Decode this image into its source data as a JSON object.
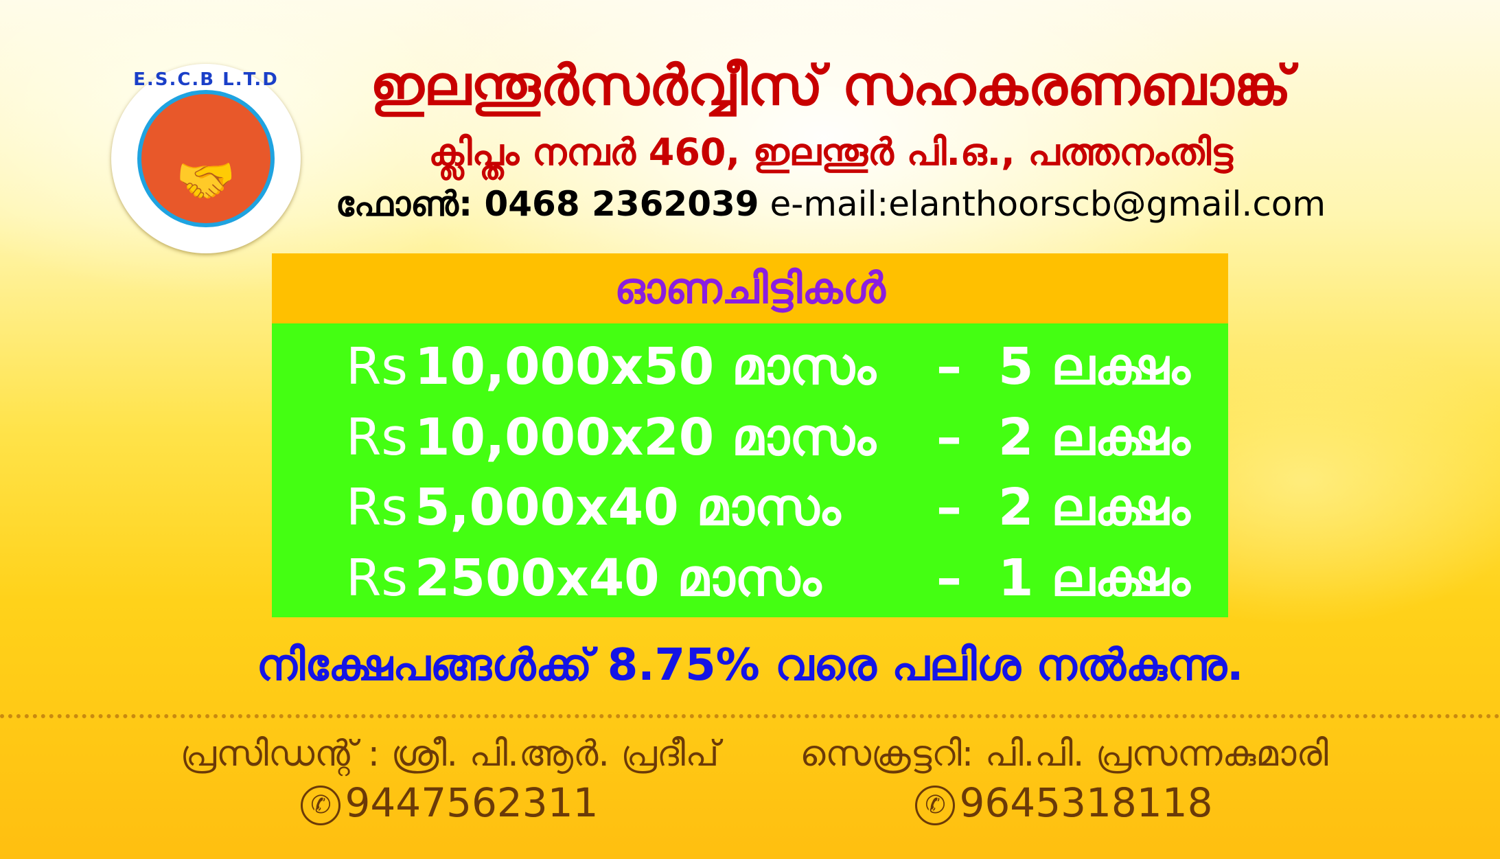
{
  "logo": {
    "text": "E.S.C.B L.T.D",
    "icon": "handshake-icon",
    "colors": {
      "ring": "#1fa3e0",
      "fill": "#e8582a"
    }
  },
  "header": {
    "title": "ഇലന്തൂർസർവ്വീസ് സഹകരണബാങ്ക്",
    "subtitle": "ക്ലിപ്തം നമ്പർ 460, ഇലന്തൂർ പി.ഒ., പത്തനംതിട്ട",
    "phone_label": "ഫോൺ: 0468 2362039",
    "email": "e-mail:elanthoorscb@gmail.com"
  },
  "scheme": {
    "heading": "ഓണചിട്ടികൾ",
    "rows": [
      {
        "currency": "Rs",
        "amount": "10,000x50 മാസം",
        "dash": "–",
        "total": "5 ലക്ഷം"
      },
      {
        "currency": "Rs",
        "amount": "10,000x20 മാസം",
        "dash": "–",
        "total": "2 ലക്ഷം"
      },
      {
        "currency": "Rs",
        "amount": "5,000x40 മാസം",
        "dash": "–",
        "total": "2 ലക്ഷം"
      },
      {
        "currency": "Rs",
        "amount": "2500x40 മാസം",
        "dash": "–",
        "total": "1 ലക്ഷം"
      }
    ]
  },
  "deposit_note": "നിക്ഷേപങ്ങൾക്ക് 8.75% വരെ പലിശ നൽകുന്നു.",
  "officials": [
    {
      "title": "പ്രസിഡന്റ് : ശ്രീ. പി.ആർ. പ്രദീപ്",
      "phone": "9447562311",
      "icon": "phone-icon"
    },
    {
      "title": "സെക്രട്ടറി: പി.പി. പ്രസന്നകുമാരി",
      "phone": "9645318118",
      "icon": "phone-icon"
    }
  ],
  "colors": {
    "title": "#c80000",
    "heading_bg": "#ffc000",
    "heading_text": "#8a1ee0",
    "table_bg": "#44ff12",
    "note": "#1414e6",
    "officials": "#6b3a08"
  }
}
